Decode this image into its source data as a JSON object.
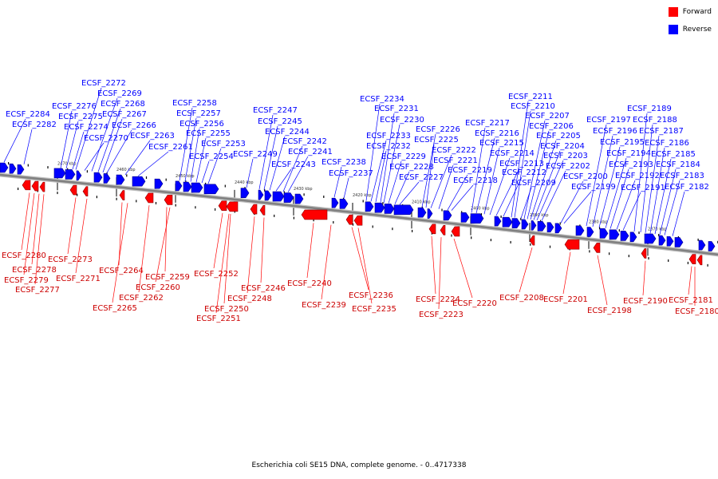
{
  "legend": {
    "forward_label": "Forward",
    "reverse_label": "Reverse",
    "forward_color": "#ff0000",
    "reverse_color": "#0000ff"
  },
  "caption": "Escherichia coli SE15 DNA, complete genome. - 0..4717338",
  "colors": {
    "backbone": "#808080",
    "tick": "#000000"
  },
  "ticks": [
    "2470 kbp",
    "2460 kbp",
    "2450 kbp",
    "2440 kbp",
    "2430 kbp",
    "2420 kbp",
    "2410 kbp",
    "2400 kbp",
    "2390 kbp",
    "2380 kbp",
    "2370 kbp"
  ],
  "reverse_genes": [
    "ECSF_2284",
    "ECSF_2282",
    "ECSF_2276",
    "ECSF_2275",
    "ECSF_2274",
    "ECSF_2272",
    "ECSF_2270",
    "ECSF_2269",
    "ECSF_2268",
    "ECSF_2267",
    "ECSF_2266",
    "ECSF_2263",
    "ECSF_2261",
    "ECSF_2258",
    "ECSF_2257",
    "ECSF_2256",
    "ECSF_2255",
    "ECSF_2254",
    "ECSF_2253",
    "ECSF_2249",
    "ECSF_2247",
    "ECSF_2245",
    "ECSF_2244",
    "ECSF_2243",
    "ECSF_2242",
    "ECSF_2241",
    "ECSF_2238",
    "ECSF_2237",
    "ECSF_2234",
    "ECSF_2233",
    "ECSF_2232",
    "ECSF_2231",
    "ECSF_2230",
    "ECSF_2229",
    "ECSF_2228",
    "ECSF_2227",
    "ECSF_2226",
    "ECSF_2225",
    "ECSF_2222",
    "ECSF_2221",
    "ECSF_2219",
    "ECSF_2218",
    "ECSF_2217",
    "ECSF_2216",
    "ECSF_2215",
    "ECSF_2214",
    "ECSF_2213",
    "ECSF_2212",
    "ECSF_2211",
    "ECSF_2210",
    "ECSF_2209",
    "ECSF_2207",
    "ECSF_2206",
    "ECSF_2205",
    "ECSF_2204",
    "ECSF_2203",
    "ECSF_2202",
    "ECSF_2200",
    "ECSF_2199",
    "ECSF_2197",
    "ECSF_2196",
    "ECSF_2195",
    "ECSF_2194",
    "ECSF_2193",
    "ECSF_2192",
    "ECSF_2191",
    "ECSF_2189",
    "ECSF_2188",
    "ECSF_2187",
    "ECSF_2186",
    "ECSF_2185",
    "ECSF_2184",
    "ECSF_2183",
    "ECSF_2182"
  ],
  "forward_genes": [
    "ECSF_2280",
    "ECSF_2278",
    "ECSF_2279",
    "ECSF_2277",
    "ECSF_2273",
    "ECSF_2271",
    "ECSF_2264",
    "ECSF_2265",
    "ECSF_2262",
    "ECSF_2260",
    "ECSF_2259",
    "ECSF_2252",
    "ECSF_2250",
    "ECSF_2251",
    "ECSF_2248",
    "ECSF_2246",
    "ECSF_2240",
    "ECSF_2239",
    "ECSF_2236",
    "ECSF_2235",
    "ECSF_2224",
    "ECSF_2223",
    "ECSF_2220",
    "ECSF_2208",
    "ECSF_2201",
    "ECSF_2198",
    "ECSF_2190",
    "ECSF_2181",
    "ECSF_2180"
  ]
}
